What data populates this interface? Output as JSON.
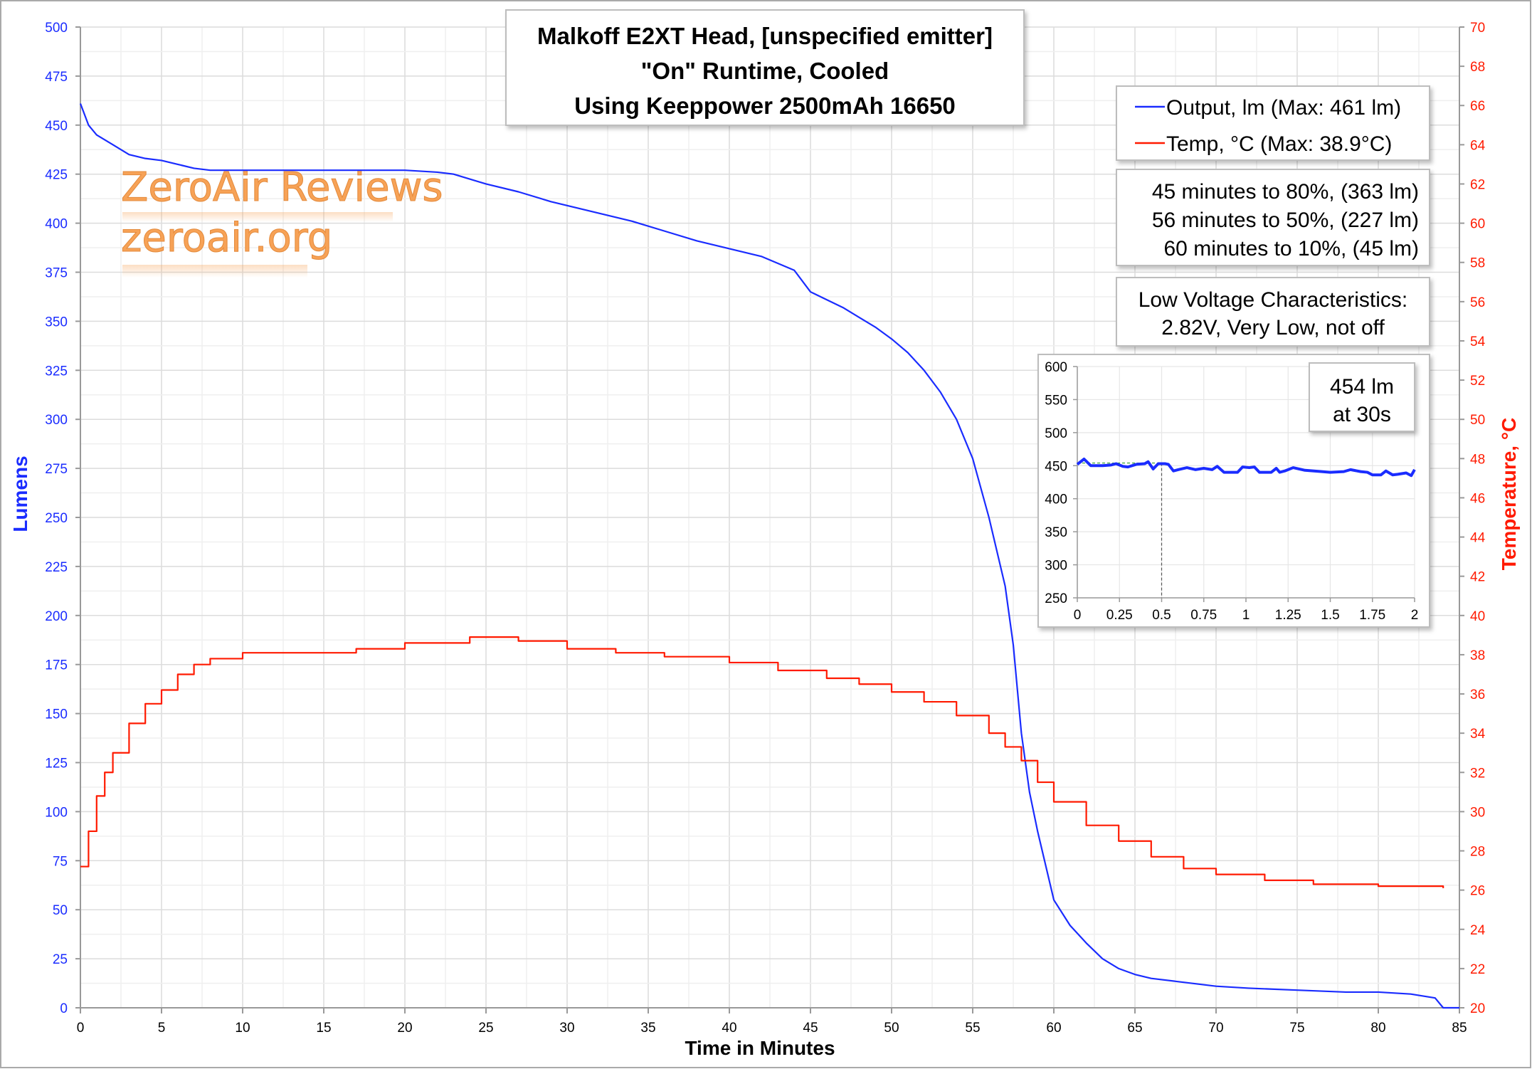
{
  "chart_data": {
    "type": "line",
    "title": [
      "Malkoff E2XT Head, [unspecified emitter]",
      "\"On\" Runtime, Cooled",
      "Using Keeppower 2500mAh 16650"
    ],
    "xlabel": "Time in Minutes",
    "ylabel": "Lumens",
    "y2label": "Temperature, °C",
    "xlim": [
      0,
      85
    ],
    "ylim": [
      0,
      500
    ],
    "y2lim": [
      20,
      70
    ],
    "xticks": [
      0,
      5,
      10,
      15,
      20,
      25,
      30,
      35,
      40,
      45,
      50,
      55,
      60,
      65,
      70,
      75,
      80,
      85
    ],
    "yticks": [
      0,
      25,
      50,
      75,
      100,
      125,
      150,
      175,
      200,
      225,
      250,
      275,
      300,
      325,
      350,
      375,
      400,
      425,
      450,
      475,
      500
    ],
    "y2ticks": [
      20,
      22,
      24,
      26,
      28,
      30,
      32,
      34,
      36,
      38,
      40,
      42,
      44,
      46,
      48,
      50,
      52,
      54,
      56,
      58,
      60,
      62,
      64,
      66,
      68,
      70
    ],
    "grid": true,
    "legend_position": "top-right",
    "colors": {
      "output": "#1a2cff",
      "temp": "#ff1a00",
      "left_axis": "#1a2cff",
      "right_axis": "#ff1a00"
    },
    "series": [
      {
        "name": "Output, lm (Max: 461 lm)",
        "axis": "left",
        "x": [
          0,
          0.5,
          1,
          2,
          3,
          4,
          5,
          6,
          7,
          8,
          10,
          12,
          15,
          18,
          20,
          22,
          23,
          25,
          27,
          29,
          30,
          32,
          34,
          36,
          38,
          40,
          42,
          44,
          45,
          46,
          47,
          48,
          49,
          50,
          51,
          52,
          53,
          54,
          55,
          56,
          57,
          57.5,
          58,
          58.5,
          59,
          60,
          61,
          62,
          63,
          64,
          65,
          66,
          68,
          70,
          72,
          75,
          78,
          80,
          82,
          83.5,
          84,
          85
        ],
        "y": [
          461,
          450,
          445,
          440,
          435,
          433,
          432,
          430,
          428,
          427,
          427,
          427,
          427,
          427,
          427,
          426,
          425,
          420,
          416,
          411,
          409,
          405,
          401,
          396,
          391,
          387,
          383,
          376,
          365,
          361,
          357,
          352,
          347,
          341,
          334,
          325,
          314,
          300,
          280,
          250,
          215,
          185,
          140,
          110,
          90,
          55,
          42,
          33,
          25,
          20,
          17,
          15,
          13,
          11,
          10,
          9,
          8,
          8,
          7,
          5,
          0,
          0
        ]
      },
      {
        "name": "Temp, °C (Max: 38.9°C)",
        "axis": "right",
        "x": [
          0,
          0.5,
          1,
          1.5,
          2,
          3,
          4,
          5,
          6,
          7,
          8,
          10,
          15,
          17,
          20,
          24,
          27,
          30,
          33,
          36,
          40,
          43,
          46,
          48,
          50,
          52,
          54,
          56,
          57,
          58,
          59,
          60,
          62,
          64,
          66,
          68,
          70,
          73,
          76,
          80,
          84
        ],
        "y": [
          27.2,
          29,
          30.8,
          32,
          33,
          34.5,
          35.5,
          36.2,
          37,
          37.5,
          37.8,
          38.1,
          38.1,
          38.3,
          38.6,
          38.9,
          38.7,
          38.3,
          38.1,
          37.9,
          37.6,
          37.2,
          36.8,
          36.5,
          36.1,
          35.6,
          34.9,
          34.0,
          33.3,
          32.6,
          31.5,
          30.5,
          29.3,
          28.5,
          27.7,
          27.1,
          26.8,
          26.5,
          26.3,
          26.2,
          26.1
        ]
      }
    ],
    "annotations": {
      "runtime_stats": [
        "45 minutes to 80%, (363 lm)",
        "56 minutes to 50%, (227 lm)",
        "60 minutes to 10%, (45 lm)"
      ],
      "low_voltage": [
        "Low Voltage Characteristics:",
        "2.82V, Very Low, not off"
      ]
    },
    "watermark": [
      "ZeroAir Reviews",
      "zeroair.org"
    ],
    "inset": {
      "type": "line",
      "xlim": [
        0,
        2
      ],
      "ylim": [
        250,
        600
      ],
      "xticks": [
        "0",
        "0.25",
        "0.5",
        "0.75",
        "1",
        "1.25",
        "1.5",
        "1.75",
        "2"
      ],
      "yticks": [
        250,
        300,
        350,
        400,
        450,
        500,
        550,
        600
      ],
      "marker_x": 0.5,
      "marker_y": 454,
      "label": [
        "454 lm",
        "at 30s"
      ],
      "x": [
        0,
        0.04,
        0.08,
        0.15,
        0.2,
        0.23,
        0.27,
        0.3,
        0.35,
        0.4,
        0.42,
        0.45,
        0.48,
        0.52,
        0.54,
        0.57,
        0.6,
        0.65,
        0.7,
        0.75,
        0.8,
        0.83,
        0.87,
        0.95,
        0.98,
        1.02,
        1.05,
        1.08,
        1.15,
        1.18,
        1.2,
        1.23,
        1.28,
        1.35,
        1.45,
        1.5,
        1.58,
        1.62,
        1.68,
        1.72,
        1.75,
        1.8,
        1.83,
        1.87,
        1.9,
        1.95,
        1.98,
        2
      ],
      "y": [
        452,
        460,
        450,
        450,
        451,
        453,
        449,
        448,
        452,
        453,
        456,
        445,
        453,
        453,
        452,
        442,
        444,
        447,
        444,
        446,
        444,
        449,
        440,
        440,
        448,
        447,
        448,
        440,
        440,
        446,
        440,
        442,
        447,
        443,
        441,
        440,
        441,
        444,
        441,
        440,
        436,
        436,
        442,
        436,
        437,
        439,
        435,
        444
      ]
    }
  }
}
